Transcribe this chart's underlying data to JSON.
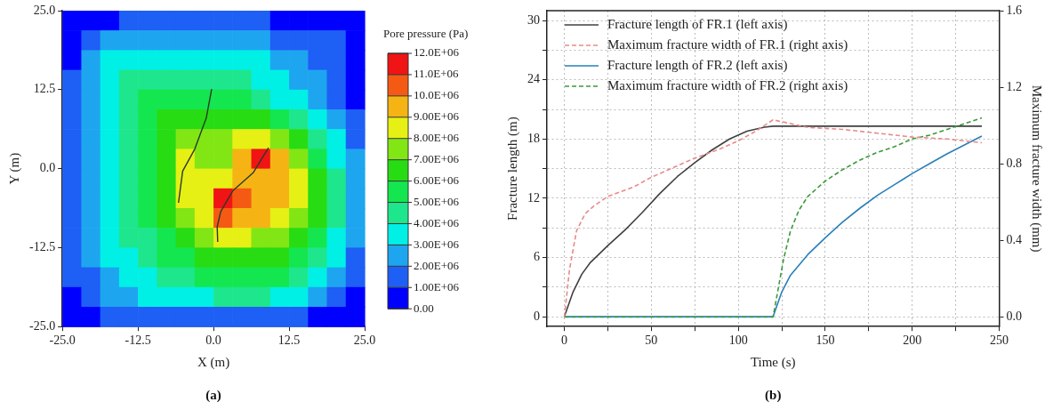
{
  "chart_data": [
    {
      "type": "heatmap",
      "xlabel": "X (m)",
      "ylabel": "Y (m)",
      "clabel": "Pore pressure (Pa)",
      "annotations": [
        "(a)"
      ],
      "x": [
        -23.4375,
        -20.3125,
        -17.1875,
        -14.0625,
        -10.9375,
        -7.8125,
        -4.6875,
        -1.5625,
        1.5625,
        4.6875,
        7.8125,
        10.9375,
        14.0625,
        17.1875,
        20.3125,
        23.4375
      ],
      "y": [
        23.4375,
        20.3125,
        17.1875,
        14.0625,
        10.9375,
        7.8125,
        4.6875,
        1.5625,
        -1.5625,
        -4.6875,
        -7.8125,
        -10.9375,
        -14.0625,
        -17.1875,
        -20.3125,
        -23.4375
      ],
      "xlim": [
        -25,
        25
      ],
      "ylim": [
        -25,
        25
      ],
      "xticks": [
        {
          "value": -25,
          "label": "-25.0"
        },
        {
          "value": -12.5,
          "label": "-12.5"
        },
        {
          "value": 0,
          "label": "0.0"
        },
        {
          "value": 12.5,
          "label": "12.5"
        },
        {
          "value": 25,
          "label": "25.0"
        }
      ],
      "yticks": [
        {
          "value": -25,
          "label": "-25.0"
        },
        {
          "value": -12.5,
          "label": "-12.5"
        },
        {
          "value": 0,
          "label": "0.0"
        },
        {
          "value": 12.5,
          "label": "12.5"
        },
        {
          "value": 25,
          "label": "25.0"
        }
      ],
      "clim": [
        0,
        12000000
      ],
      "cticks": [
        {
          "value": 0,
          "label": "0.00"
        },
        {
          "value": 1000000,
          "label": "1.00E+06"
        },
        {
          "value": 2000000,
          "label": "2.00E+06"
        },
        {
          "value": 3000000,
          "label": "3.00E+06"
        },
        {
          "value": 4000000,
          "label": "4.00E+06"
        },
        {
          "value": 5000000,
          "label": "5.00E+06"
        },
        {
          "value": 6000000,
          "label": "6.00E+06"
        },
        {
          "value": 7000000,
          "label": "7.00E+06"
        },
        {
          "value": 8000000,
          "label": "8.00E+06"
        },
        {
          "value": 9000000,
          "label": "9.00E+06"
        },
        {
          "value": 10000000,
          "label": "10.0E+06"
        },
        {
          "value": 11000000,
          "label": "11.0E+06"
        },
        {
          "value": 12000000,
          "label": "12.0E+06"
        }
      ],
      "colors": [
        "#0000ff",
        "#1e5ff5",
        "#1ea5f0",
        "#00f0e6",
        "#1ee68c",
        "#14e650",
        "#28dc14",
        "#82e614",
        "#e6f014",
        "#f5b414",
        "#f55a14",
        "#f01414"
      ],
      "cells": [
        [
          500000,
          500000,
          500000,
          1500000,
          1500000,
          1500000,
          1500000,
          1500000,
          1500000,
          1500000,
          1500000,
          500000,
          500000,
          500000,
          500000,
          500000
        ],
        [
          500000,
          1500000,
          2500000,
          2500000,
          2500000,
          2500000,
          2500000,
          2500000,
          2500000,
          2500000,
          2500000,
          1500000,
          1500000,
          1500000,
          1500000,
          500000
        ],
        [
          500000,
          2500000,
          3500000,
          3500000,
          3500000,
          3500000,
          3500000,
          3500000,
          3500000,
          3500000,
          3500000,
          2500000,
          2500000,
          1500000,
          1500000,
          500000
        ],
        [
          1500000,
          2500000,
          3500000,
          4500000,
          4500000,
          4500000,
          4500000,
          4500000,
          4500000,
          4500000,
          3500000,
          3500000,
          2500000,
          2500000,
          1500000,
          500000
        ],
        [
          1500000,
          2500000,
          3500000,
          4500000,
          5500000,
          5500000,
          5500000,
          5500000,
          5500000,
          5500000,
          4500000,
          3500000,
          3500000,
          2500000,
          1500000,
          500000
        ],
        [
          1500000,
          2500000,
          3500000,
          4500000,
          5500000,
          6500000,
          6500000,
          6500000,
          6500000,
          6500000,
          6500000,
          5500000,
          4500000,
          3500000,
          2500000,
          1500000
        ],
        [
          1500000,
          2500000,
          3500000,
          4500000,
          5500000,
          6500000,
          7500000,
          7500000,
          7500000,
          8500000,
          8500000,
          7500000,
          6500000,
          4500000,
          3500000,
          1500000
        ],
        [
          1500000,
          2500000,
          3500000,
          4500000,
          5500000,
          6500000,
          8500000,
          7500000,
          7500000,
          9500000,
          11500000,
          9500000,
          7500000,
          5500000,
          3500000,
          2500000
        ],
        [
          1500000,
          2500000,
          3500000,
          4500000,
          5500000,
          6500000,
          8500000,
          8500000,
          8500000,
          9500000,
          9500000,
          9500000,
          8500000,
          6500000,
          4500000,
          2500000
        ],
        [
          1500000,
          2500000,
          3500000,
          4500000,
          5500000,
          6500000,
          8500000,
          8500000,
          11500000,
          10500000,
          9500000,
          9500000,
          8500000,
          6500000,
          4500000,
          2500000
        ],
        [
          1500000,
          2500000,
          3500000,
          4500000,
          5500000,
          6500000,
          7500000,
          8500000,
          10500000,
          9500000,
          9500000,
          8500000,
          7500000,
          6500000,
          4500000,
          2500000
        ],
        [
          1500000,
          2500000,
          3500000,
          4500000,
          4500000,
          5500000,
          6500000,
          7500000,
          8500000,
          8500000,
          7500000,
          7500000,
          6500000,
          5500000,
          3500000,
          2500000
        ],
        [
          1500000,
          2500000,
          3500000,
          3500000,
          4500000,
          5500000,
          5500000,
          6500000,
          6500000,
          6500000,
          6500000,
          6500000,
          5500000,
          4500000,
          3500000,
          1500000
        ],
        [
          1500000,
          1500000,
          2500000,
          3500000,
          3500000,
          4500000,
          4500000,
          5500000,
          5500000,
          5500000,
          5500000,
          5500000,
          4500000,
          3500000,
          2500000,
          1500000
        ],
        [
          500000,
          1500000,
          2500000,
          2500000,
          3500000,
          3500000,
          3500000,
          3500000,
          4500000,
          4500000,
          4500000,
          3500000,
          3500000,
          2500000,
          1500000,
          500000
        ],
        [
          500000,
          500000,
          1500000,
          1500000,
          1500000,
          1500000,
          1500000,
          1500000,
          1500000,
          1500000,
          1500000,
          1500000,
          1500000,
          500000,
          500000,
          500000
        ]
      ]
    },
    {
      "type": "line",
      "xlabel": "Time (s)",
      "ylabel": "Fracture length (m)",
      "y2label": "Maximum fracture width (mm)",
      "annotations": [
        "(b)"
      ],
      "xlim": [
        -10,
        250
      ],
      "ylim": [
        -1,
        31
      ],
      "y2lim": [
        -0.05,
        1.6
      ],
      "xticks": [
        0,
        {
          "value": 25,
          "label": null
        },
        50,
        {
          "value": 75,
          "label": null
        },
        100,
        {
          "value": 125,
          "label": null
        },
        150,
        {
          "value": 175,
          "label": null
        },
        200,
        {
          "value": 225,
          "label": null
        },
        250
      ],
      "yticks": [
        0,
        {
          "value": 3,
          "label": null
        },
        6,
        {
          "value": 9,
          "label": null
        },
        12,
        {
          "value": 15,
          "label": null
        },
        18,
        {
          "value": 21,
          "label": null
        },
        24,
        {
          "value": 27,
          "label": null
        },
        30
      ],
      "y2ticks": [
        {
          "value": 0,
          "label": "0.0"
        },
        {
          "value": 0.4,
          "label": "0.4"
        },
        {
          "value": 0.8,
          "label": "0.8"
        },
        {
          "value": 1.2,
          "label": "1.2"
        },
        {
          "value": 1.6,
          "label": "1.6"
        }
      ],
      "grid": true,
      "legend": "top left",
      "marker": "none",
      "series": [
        {
          "name": "Fracture length of FR.1 (left axis)",
          "color": "#404040",
          "line_style": "solid",
          "x": [
            0,
            5,
            10,
            15,
            25,
            35,
            45,
            55,
            65,
            75,
            85,
            95,
            105,
            115,
            120,
            240
          ],
          "values": [
            0,
            2.5,
            4.3,
            5.5,
            7.2,
            8.8,
            10.6,
            12.5,
            14.2,
            15.6,
            16.9,
            18,
            18.8,
            19.2,
            19.3,
            19.3
          ]
        },
        {
          "name": "Maximum fracture width of FR.1 (right axis)",
          "color": "#e88a8a",
          "line_style": "dashed",
          "axis": "y2",
          "x": [
            0,
            3,
            7,
            12,
            17,
            25,
            40,
            50,
            60,
            75,
            90,
            100,
            110,
            120,
            125,
            140,
            160,
            180,
            200,
            220,
            240
          ],
          "values": [
            0,
            0.25,
            0.45,
            0.54,
            0.58,
            0.63,
            0.68,
            0.73,
            0.77,
            0.83,
            0.88,
            0.92,
            0.97,
            1.03,
            1.02,
            0.99,
            0.98,
            0.96,
            0.94,
            0.93,
            0.91
          ]
        },
        {
          "name": "Fracture length of FR.2 (left axis)",
          "color": "#2a7fb8",
          "line_style": "solid",
          "x": [
            0,
            120,
            125,
            130,
            140,
            150,
            160,
            170,
            180,
            190,
            200,
            210,
            220,
            230,
            240
          ],
          "values": [
            0,
            0,
            2.5,
            4.2,
            6.3,
            8,
            9.6,
            11,
            12.3,
            13.4,
            14.5,
            15.5,
            16.5,
            17.4,
            18.3
          ]
        },
        {
          "name": "Maximum fracture width of FR.2 (right axis)",
          "color": "#3a9a3a",
          "line_style": "dashed",
          "axis": "y2",
          "x": [
            0,
            120,
            123,
            126,
            130,
            135,
            140,
            150,
            160,
            170,
            180,
            190,
            200,
            210,
            220,
            230,
            240
          ],
          "values": [
            0,
            0,
            0.15,
            0.3,
            0.45,
            0.56,
            0.63,
            0.71,
            0.77,
            0.82,
            0.86,
            0.89,
            0.93,
            0.95,
            0.98,
            1.01,
            1.04
          ]
        }
      ]
    }
  ]
}
